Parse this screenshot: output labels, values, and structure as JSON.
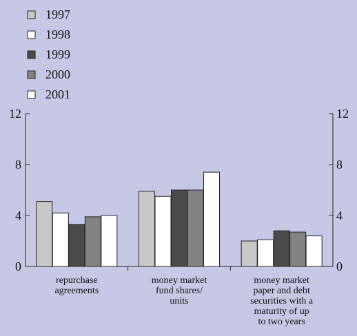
{
  "chart_data": {
    "type": "bar",
    "title": "",
    "xlabel": "",
    "ylabel": "",
    "ylim": [
      0,
      12
    ],
    "yticks": [
      0,
      4,
      8,
      12
    ],
    "grid": false,
    "legend_placement": "top-left",
    "right_axis": true,
    "categories": [
      [
        "repurchase",
        "agreements"
      ],
      [
        "money market",
        "fund shares/",
        "units"
      ],
      [
        "money market",
        "paper and debt",
        "securities with a",
        "maturity of up",
        "to two years"
      ]
    ],
    "series": [
      {
        "name": "1997",
        "color": "#c8c8c8",
        "values": [
          5.1,
          5.9,
          2.0
        ]
      },
      {
        "name": "1998",
        "color": "#ffffff",
        "values": [
          4.2,
          5.5,
          2.1
        ]
      },
      {
        "name": "1999",
        "color": "#4a4a4a",
        "values": [
          3.3,
          6.0,
          2.8
        ]
      },
      {
        "name": "2000",
        "color": "#828282",
        "values": [
          3.9,
          6.0,
          2.7
        ]
      },
      {
        "name": "2001",
        "color": "#ffffff",
        "values": [
          4.0,
          7.4,
          2.4
        ]
      }
    ]
  }
}
